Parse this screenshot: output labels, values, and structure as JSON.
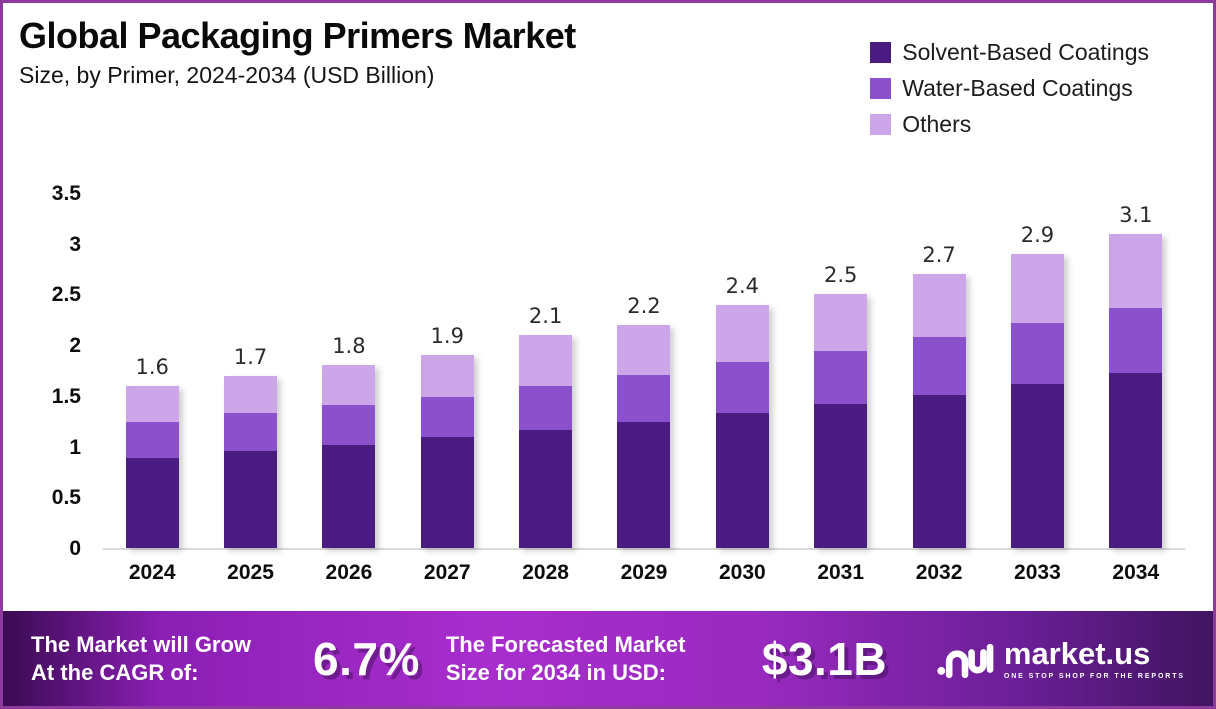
{
  "header": {
    "title": "Global Packaging Primers Market",
    "subtitle": "Size, by Primer, 2024-2034 (USD Billion)"
  },
  "chart_data": {
    "type": "bar",
    "stacked": true,
    "title": "Global Packaging Primers Market Size, by Primer, 2024-2034 (USD Billion)",
    "xlabel": "",
    "ylabel": "USD Billion",
    "ylim": [
      0,
      3.5
    ],
    "yticks": [
      "3.5",
      "3",
      "2.5",
      "2",
      "1.5",
      "1",
      "0.5",
      "0"
    ],
    "grid": false,
    "legend_position": "top-right",
    "categories": [
      "2024",
      "2025",
      "2026",
      "2027",
      "2028",
      "2029",
      "2030",
      "2031",
      "2032",
      "2033",
      "2034"
    ],
    "series": [
      {
        "name": "Solvent-Based Coatings",
        "color": "#4A1C82",
        "values": [
          0.89,
          0.96,
          1.02,
          1.09,
          1.16,
          1.24,
          1.33,
          1.42,
          1.51,
          1.62,
          1.73
        ]
      },
      {
        "name": "Water-Based Coatings",
        "color": "#8B50CC",
        "values": [
          0.35,
          0.37,
          0.39,
          0.4,
          0.44,
          0.47,
          0.5,
          0.52,
          0.57,
          0.6,
          0.64
        ]
      },
      {
        "name": "Others",
        "color": "#CDA6EA",
        "values": [
          0.36,
          0.37,
          0.39,
          0.41,
          0.5,
          0.49,
          0.57,
          0.56,
          0.62,
          0.68,
          0.73
        ]
      }
    ],
    "totals": [
      "1.6",
      "1.7",
      "1.8",
      "1.9",
      "2.1",
      "2.2",
      "2.4",
      "2.5",
      "2.7",
      "2.9",
      "3.1"
    ]
  },
  "banner": {
    "cagr": {
      "label_line1": "The Market will Grow",
      "label_line2": "At the CAGR of:",
      "value": "6.7%"
    },
    "forecast": {
      "label_line1": "The Forecasted Market",
      "label_line2": "Size for 2034 in USD:",
      "value": "$3.1B"
    },
    "logo": {
      "wordmark": "market.us",
      "tagline": "ONE STOP SHOP FOR THE REPORTS"
    }
  },
  "colors": {
    "frame_border": "#8C3A9E",
    "axis_line": "#D9D9D9",
    "banner_gradient": [
      "#3A0B52",
      "#8B1FB4",
      "#A82ECD",
      "#9A2AC0",
      "#6B1F97",
      "#401460"
    ],
    "text": "#111111",
    "banner_text": "#FFFFFF"
  }
}
